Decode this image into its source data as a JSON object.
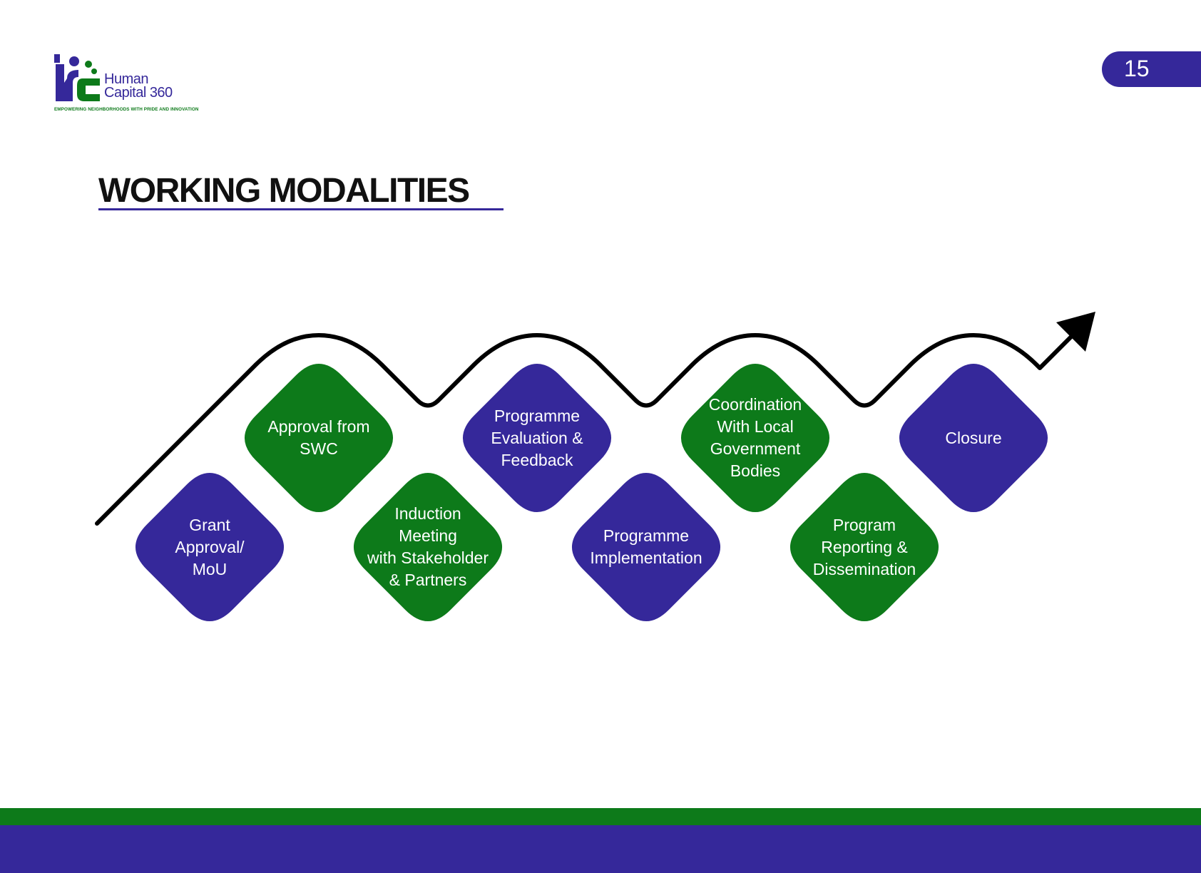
{
  "brand": {
    "name_line1": "Human",
    "name_line2": "Capital 360",
    "tagline": "EMPOWERING NEIGHBORHOODS WITH PRIDE AND INNOVATION",
    "colors": {
      "purple": "#35289a",
      "green": "#0d7a1a"
    }
  },
  "page": {
    "number": "15",
    "title": "WORKING MODALITIES"
  },
  "steps": [
    {
      "label": "Grant\nApproval/\nMoU",
      "color": "#35289a"
    },
    {
      "label": "Approval from\nSWC",
      "color": "#0d7a1a"
    },
    {
      "label": "Induction\nMeeting\nwith Stakeholder\n& Partners",
      "color": "#0d7a1a"
    },
    {
      "label": "Programme\nEvaluation &\nFeedback",
      "color": "#35289a"
    },
    {
      "label": "Programme\nImplementation",
      "color": "#35289a"
    },
    {
      "label": "Coordination\nWith Local\nGovernment\nBodies",
      "color": "#0d7a1a"
    },
    {
      "label": "Program\nReporting &\nDissemination",
      "color": "#0d7a1a"
    },
    {
      "label": "Closure",
      "color": "#35289a"
    }
  ]
}
